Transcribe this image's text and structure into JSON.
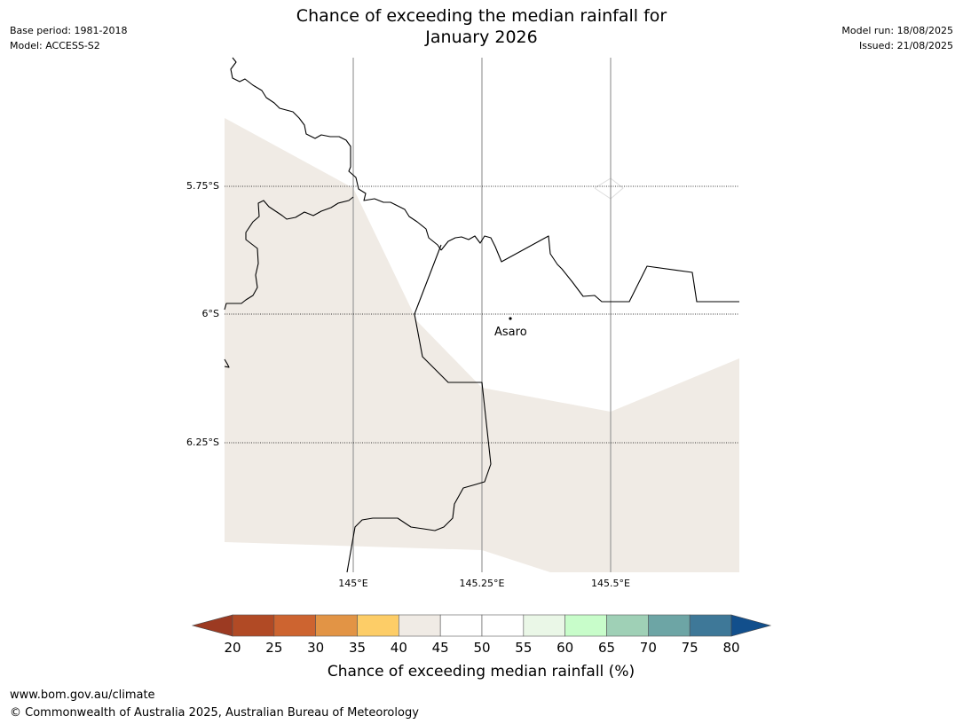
{
  "header": {
    "title_line1": "Chance of exceeding the median rainfall for",
    "title_line2": "January 2026",
    "base_period": "Base period: 1981-2018",
    "model": "Model: ACCESS-S2",
    "model_run": "Model run: 18/08/2025",
    "issued": "Issued: 21/08/2025"
  },
  "map": {
    "lat_labels": [
      "5.75°S",
      "6°S",
      "6.25°S"
    ],
    "lon_labels": [
      "145°E",
      "145.25°E",
      "145.5°E"
    ],
    "place": {
      "name": "Asaro"
    },
    "colors": {
      "band_40_45": "#f0ebe5",
      "boundary": "#000000",
      "meridian": "#999999"
    }
  },
  "colorbar": {
    "ticks": [
      "20",
      "25",
      "30",
      "35",
      "40",
      "45",
      "50",
      "55",
      "60",
      "65",
      "70",
      "75",
      "80"
    ],
    "colors": {
      "below": "#9c3a22",
      "bins": [
        "#b14a25",
        "#cd6430",
        "#e29445",
        "#fdcd67",
        "#f0ebe5",
        "#ffffff",
        "#ffffff",
        "#eaf7e7",
        "#c8fdca",
        "#9fd0b6",
        "#6da5a5",
        "#3e7898"
      ],
      "above": "#124f8c"
    },
    "label": "Chance of exceeding median rainfall (%)"
  },
  "footer": {
    "website": "www.bom.gov.au/climate",
    "copyright": "© Commonwealth of Australia 2025, Australian Bureau of Meteorology"
  }
}
